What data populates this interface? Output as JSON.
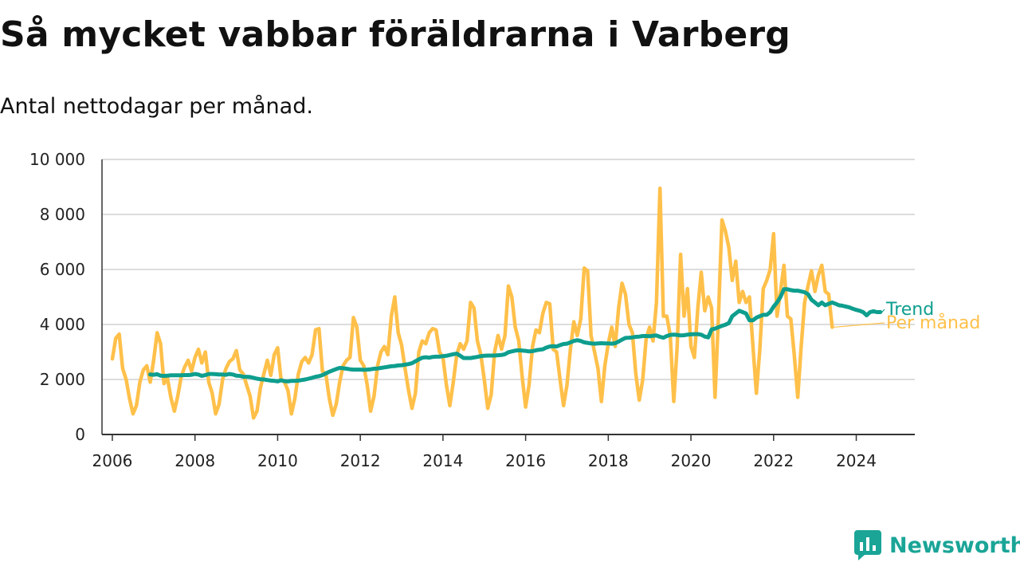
{
  "title": "Så mycket vabbar föräldrarna i Varberg",
  "subtitle": "Antal nettodagar per månad.",
  "brand": {
    "name": "Newsworthy",
    "icon": "newsworthy-logo-icon"
  },
  "chart_data": {
    "type": "line",
    "ylim": [
      0,
      10000
    ],
    "yticks": [
      0,
      2000,
      4000,
      6000,
      8000,
      10000
    ],
    "ytick_labels": [
      "0",
      "2 000",
      "4 000",
      "6 000",
      "8 000",
      "10 000"
    ],
    "xlim": [
      "2005-10",
      "2025-06"
    ],
    "xticks": [
      "2006",
      "2008",
      "2010",
      "2012",
      "2014",
      "2016",
      "2018",
      "2020",
      "2022",
      "2024"
    ],
    "grid": true,
    "legend": "right-end-labels",
    "series": [
      {
        "name": "Per månad",
        "color": "#ffc04a",
        "start": "2006-01",
        "values": [
          2750,
          3500,
          3650,
          2400,
          2000,
          1300,
          750,
          1050,
          1900,
          2350,
          2500,
          1900,
          2700,
          3700,
          3300,
          1850,
          2050,
          1350,
          850,
          1400,
          2100,
          2450,
          2700,
          2300,
          2800,
          3100,
          2600,
          3000,
          1900,
          1500,
          750,
          1100,
          2000,
          2400,
          2650,
          2750,
          3050,
          2350,
          2200,
          1800,
          1400,
          600,
          850,
          1700,
          2200,
          2700,
          2150,
          2900,
          3150,
          2000,
          1900,
          1600,
          750,
          1300,
          2200,
          2650,
          2800,
          2600,
          2900,
          3800,
          3850,
          2300,
          2200,
          1300,
          700,
          1100,
          1900,
          2500,
          2700,
          2800,
          4250,
          3900,
          2700,
          2500,
          1800,
          850,
          1400,
          2500,
          3000,
          3200,
          2900,
          4300,
          5000,
          3700,
          3250,
          2400,
          1600,
          950,
          1500,
          3000,
          3400,
          3300,
          3700,
          3850,
          3800,
          3000,
          2800,
          1800,
          1050,
          1900,
          2900,
          3300,
          3100,
          3400,
          4800,
          4600,
          3400,
          2900,
          2000,
          950,
          1450,
          3000,
          3600,
          3100,
          3600,
          5400,
          5000,
          3900,
          3400,
          2100,
          1000,
          1800,
          3200,
          3800,
          3700,
          4400,
          4800,
          4750,
          3100,
          3000,
          2000,
          1050,
          1800,
          3100,
          4100,
          3600,
          4200,
          6050,
          5950,
          3600,
          3000,
          2400,
          1200,
          2500,
          3300,
          3900,
          3200,
          4600,
          5500,
          5100,
          4000,
          3700,
          2200,
          1250,
          2000,
          3500,
          3900,
          3400,
          4800,
          8950,
          4300,
          4300,
          3600,
          1200,
          3200,
          6550,
          4300,
          5300,
          3200,
          2800,
          4600,
          5900,
          4500,
          5000,
          4600,
          1350,
          4300,
          7800,
          7400,
          6800,
          5600,
          6300,
          4800,
          5200,
          4800,
          5000,
          3200,
          1500,
          3100,
          5300,
          5600,
          6000,
          7300,
          4300,
          5200,
          6150,
          4300,
          4200,
          2900,
          1350,
          3200,
          4800,
          5400,
          5950,
          5200,
          5800,
          6150,
          5200,
          5100,
          3900
        ]
      },
      {
        "name": "Trend",
        "color": "#0e9e8e",
        "start": "2006-12",
        "values": [
          2180,
          2170,
          2190,
          2140,
          2130,
          2140,
          2150,
          2150,
          2150,
          2150,
          2160,
          2160,
          2170,
          2200,
          2180,
          2130,
          2160,
          2200,
          2200,
          2190,
          2180,
          2180,
          2170,
          2200,
          2180,
          2140,
          2130,
          2100,
          2100,
          2090,
          2060,
          2030,
          2010,
          2000,
          1980,
          1960,
          1950,
          1930,
          1970,
          1940,
          1930,
          1950,
          1950,
          1960,
          1980,
          2000,
          2030,
          2060,
          2100,
          2120,
          2160,
          2220,
          2280,
          2330,
          2380,
          2420,
          2410,
          2390,
          2370,
          2360,
          2360,
          2360,
          2350,
          2360,
          2370,
          2390,
          2400,
          2420,
          2440,
          2460,
          2480,
          2490,
          2510,
          2520,
          2540,
          2560,
          2590,
          2660,
          2730,
          2790,
          2810,
          2790,
          2820,
          2830,
          2830,
          2850,
          2860,
          2890,
          2920,
          2940,
          2860,
          2780,
          2780,
          2780,
          2800,
          2820,
          2850,
          2860,
          2870,
          2870,
          2870,
          2880,
          2890,
          2920,
          2990,
          3020,
          3050,
          3060,
          3050,
          3040,
          3020,
          3030,
          3060,
          3080,
          3100,
          3160,
          3200,
          3210,
          3200,
          3250,
          3290,
          3300,
          3350,
          3400,
          3430,
          3400,
          3350,
          3330,
          3310,
          3300,
          3310,
          3320,
          3310,
          3310,
          3300,
          3320,
          3380,
          3450,
          3510,
          3520,
          3530,
          3550,
          3560,
          3580,
          3580,
          3570,
          3590,
          3600,
          3550,
          3520,
          3580,
          3620,
          3630,
          3620,
          3600,
          3610,
          3630,
          3640,
          3650,
          3650,
          3630,
          3560,
          3530,
          3820,
          3850,
          3900,
          3950,
          3990,
          4050,
          4300,
          4400,
          4500,
          4450,
          4400,
          4150,
          4150,
          4250,
          4300,
          4350,
          4350,
          4450,
          4650,
          4800,
          5000,
          5280,
          5280,
          5250,
          5230,
          5230,
          5200,
          5170,
          5100,
          4900,
          4800,
          4700,
          4800,
          4700,
          4750,
          4800,
          4750,
          4700,
          4680,
          4650,
          4620,
          4570,
          4530,
          4500,
          4450,
          4330,
          4450,
          4480,
          4450,
          4450
        ]
      }
    ]
  }
}
